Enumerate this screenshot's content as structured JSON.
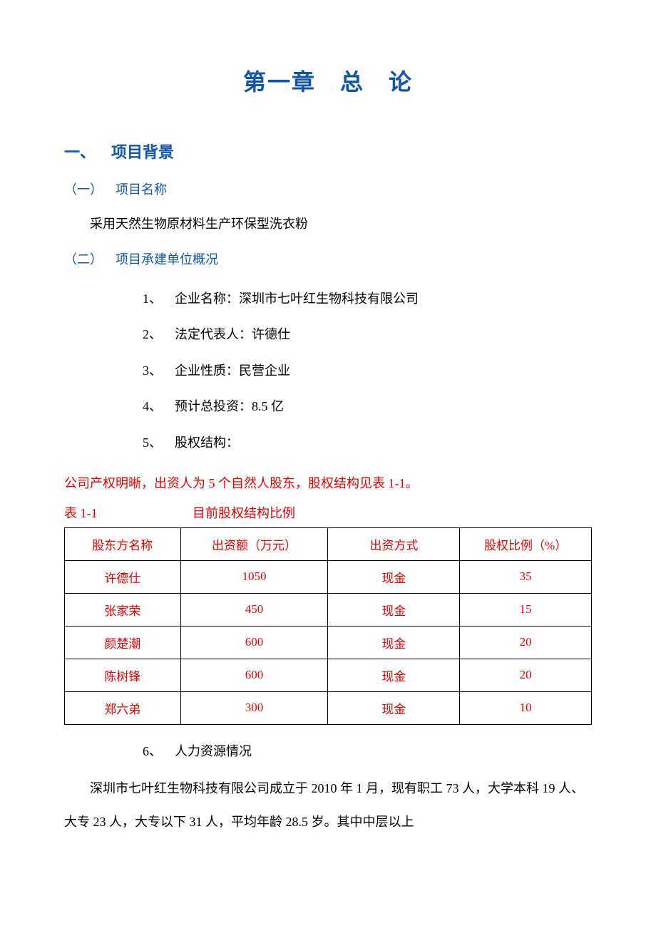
{
  "chapter_title": "第一章 总 论",
  "section1": {
    "heading": "一、 项目背景",
    "sub1": {
      "heading": "（一） 项目名称",
      "body": "采用天然生物原材料生产环保型洗衣粉"
    },
    "sub2": {
      "heading": "（二） 项目承建单位概况",
      "items": [
        {
          "num": "1、",
          "text": "企业名称：深圳市七叶红生物科技有限公司"
        },
        {
          "num": "2、",
          "text": "法定代表人：许德仕"
        },
        {
          "num": "3、",
          "text": "企业性质：民营企业"
        },
        {
          "num": "4、",
          "text": "预计总投资：8.5 亿"
        },
        {
          "num": "5、",
          "text": "股权结构："
        }
      ],
      "red_intro": "公司产权明晰，出资人为 5 个自然人股东，股权结构见表 1-1。",
      "table_label": "表 1-1",
      "table_title": "目前股权结构比例",
      "table": {
        "columns": [
          "股东方名称",
          "出资额（万元）",
          "出资方式",
          "股权比例（%）"
        ],
        "rows": [
          [
            "许德仕",
            "1050",
            "现金",
            "35"
          ],
          [
            "张家荣",
            "450",
            "现金",
            "15"
          ],
          [
            "颜楚潮",
            "600",
            "现金",
            "20"
          ],
          [
            "陈树锋",
            "600",
            "现金",
            "20"
          ],
          [
            "郑六弟",
            "300",
            "现金",
            "10"
          ]
        ],
        "col_widths": [
          "22%",
          "28%",
          "25%",
          "25%"
        ],
        "header_color": "#e60000",
        "cell_color": "#e60000",
        "border_color": "#000000",
        "font_size": 17
      },
      "item6": {
        "num": "6、",
        "text": "人力资源情况"
      },
      "paragraph": "深圳市七叶红生物科技有限公司成立于 2010 年 1 月，现有职工 73 人，大学本科 19 人、大专 23 人，大专以下 31 人，平均年龄 28.5 岁。其中中层以上"
    }
  },
  "colors": {
    "heading_blue": "#1155aa",
    "text_red": "#e60000",
    "body_black": "#000000",
    "background": "#ffffff"
  },
  "typography": {
    "chapter_fontsize": 32,
    "h1_fontsize": 22,
    "h2_fontsize": 18,
    "body_fontsize": 18,
    "line_height": 2.0
  }
}
